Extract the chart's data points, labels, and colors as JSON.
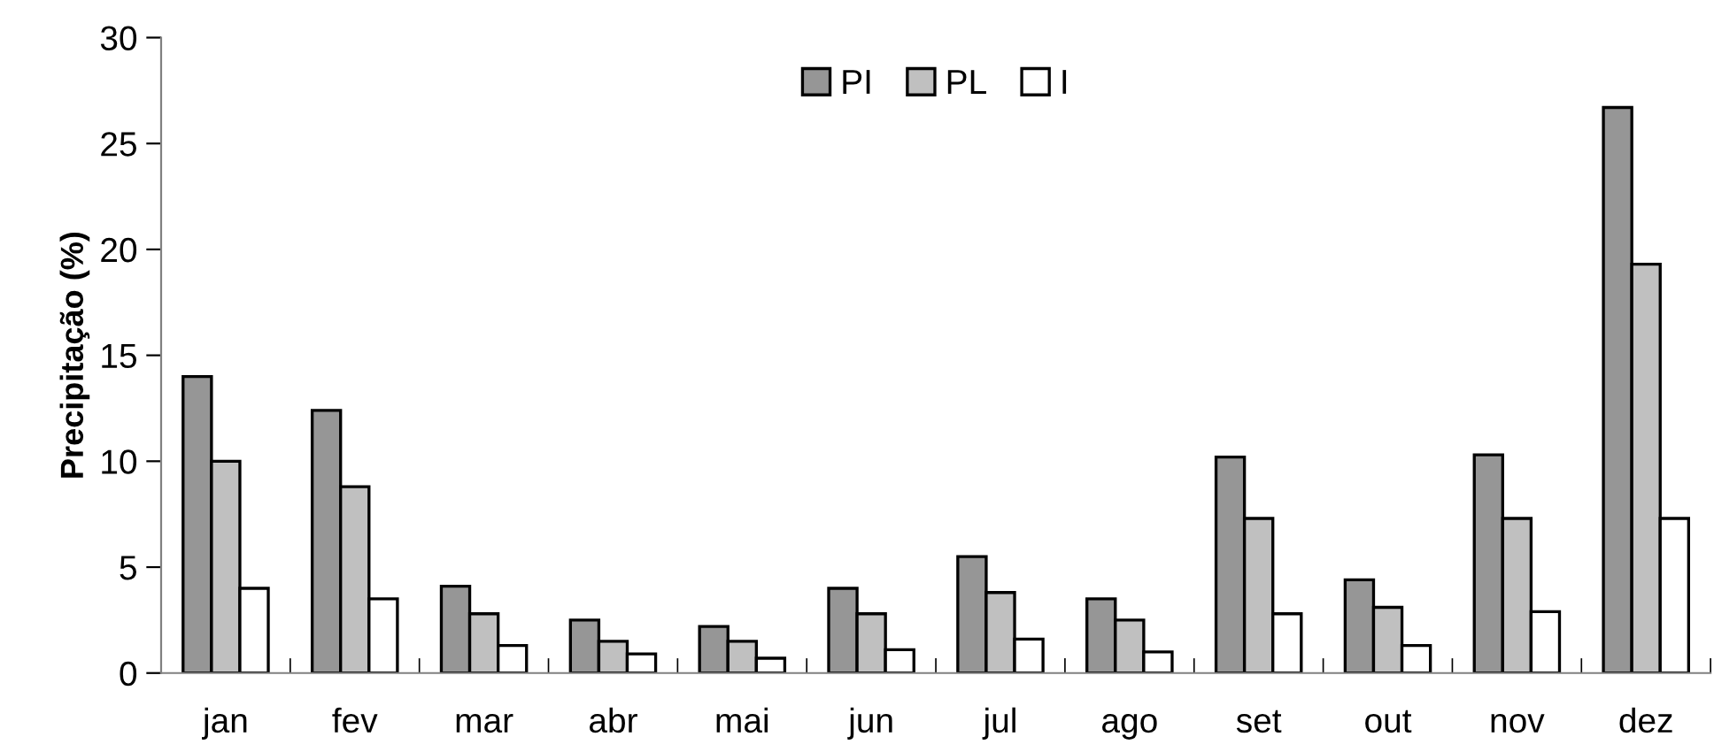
{
  "chart_data": {
    "type": "bar",
    "ylabel": "Precipitação (%)",
    "categories": [
      "jan",
      "fev",
      "mar",
      "abr",
      "mai",
      "jun",
      "jul",
      "ago",
      "set",
      "out",
      "nov",
      "dez"
    ],
    "series": [
      {
        "name": "PI",
        "color": "#969696",
        "values": [
          14.0,
          12.4,
          4.1,
          2.5,
          2.2,
          4.0,
          5.5,
          3.5,
          10.2,
          4.4,
          10.3,
          26.7
        ]
      },
      {
        "name": "PL",
        "color": "#c0c0c0",
        "values": [
          10.0,
          8.8,
          2.8,
          1.5,
          1.5,
          2.8,
          3.8,
          2.5,
          7.3,
          3.1,
          7.3,
          19.3
        ]
      },
      {
        "name": "I",
        "color": "#ffffff",
        "values": [
          4.0,
          3.5,
          1.3,
          0.9,
          0.7,
          1.1,
          1.6,
          1.0,
          2.8,
          1.3,
          2.9,
          7.3
        ]
      }
    ],
    "ylim": [
      0,
      30
    ],
    "yticks": [
      0,
      5,
      10,
      15,
      20,
      25,
      30
    ],
    "grid": false,
    "legend": "top"
  }
}
